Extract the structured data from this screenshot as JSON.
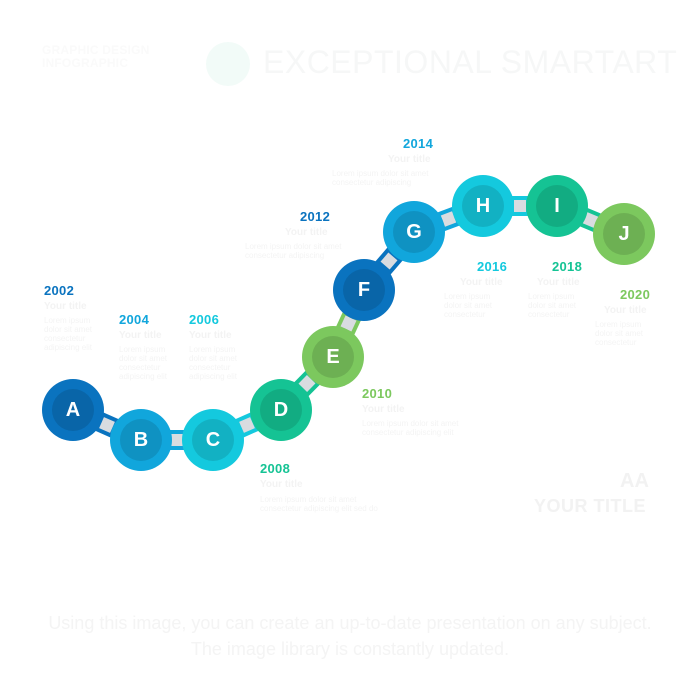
{
  "header": {
    "subtitle": "GRAPHIC DESIGN INFOGRAPHIC",
    "title": "EXCEPTIONAL SMARTART"
  },
  "colors": {
    "dark_blue": "#0a73bf",
    "blue": "#11a6dc",
    "cyan": "#14c9de",
    "teal": "#15c394",
    "green": "#7cc85e",
    "arrow": "#d9dce0"
  },
  "steps": [
    {
      "id": "a",
      "letter": "A",
      "year": "2002",
      "subtitle": "Your title",
      "text": "Lorem ipsum dolor sit amet consectetur adipiscing elit",
      "color": "#0a73bf"
    },
    {
      "id": "b",
      "letter": "B",
      "year": "2004",
      "subtitle": "Your title",
      "text": "Lorem ipsum dolor sit amet consectetur adipiscing elit",
      "color": "#11a6dc"
    },
    {
      "id": "c",
      "letter": "C",
      "year": "2006",
      "subtitle": "Your title",
      "text": "Lorem ipsum dolor sit amet consectetur adipiscing elit",
      "color": "#14c9de"
    },
    {
      "id": "d",
      "letter": "D",
      "year": "2008",
      "subtitle": "Your title",
      "text": "Lorem ipsum dolor sit amet consectetur adipiscing elit sed do",
      "color": "#15c394"
    },
    {
      "id": "e",
      "letter": "E",
      "year": "2010",
      "subtitle": "Your title",
      "text": "Lorem ipsum dolor sit amet consectetur adipiscing elit",
      "color": "#7cc85e"
    },
    {
      "id": "f",
      "letter": "F",
      "year": "2012",
      "subtitle": "Your title",
      "text": "Lorem ipsum dolor sit amet consectetur adipiscing",
      "color": "#0a73bf"
    },
    {
      "id": "g",
      "letter": "G",
      "year": "2014",
      "subtitle": "Your title",
      "text": "Lorem ipsum dolor sit amet consectetur adipiscing",
      "color": "#11a6dc"
    },
    {
      "id": "h",
      "letter": "H",
      "year": "2016",
      "subtitle": "Your title",
      "text": "Lorem ipsum dolor sit amet consectetur",
      "color": "#14c9de"
    },
    {
      "id": "i",
      "letter": "I",
      "year": "2018",
      "subtitle": "Your title",
      "text": "Lorem ipsum dolor sit amet consectetur",
      "color": "#15c394"
    },
    {
      "id": "j",
      "letter": "J",
      "year": "2020",
      "subtitle": "Your title",
      "text": "Lorem ipsum dolor sit amet consectetur",
      "color": "#7cc85e"
    }
  ],
  "badge": "AA",
  "your_title": "YOUR TITLE",
  "footer": "Using this image, you can create an up-to-date presentation on any subject. The image library is constantly updated."
}
